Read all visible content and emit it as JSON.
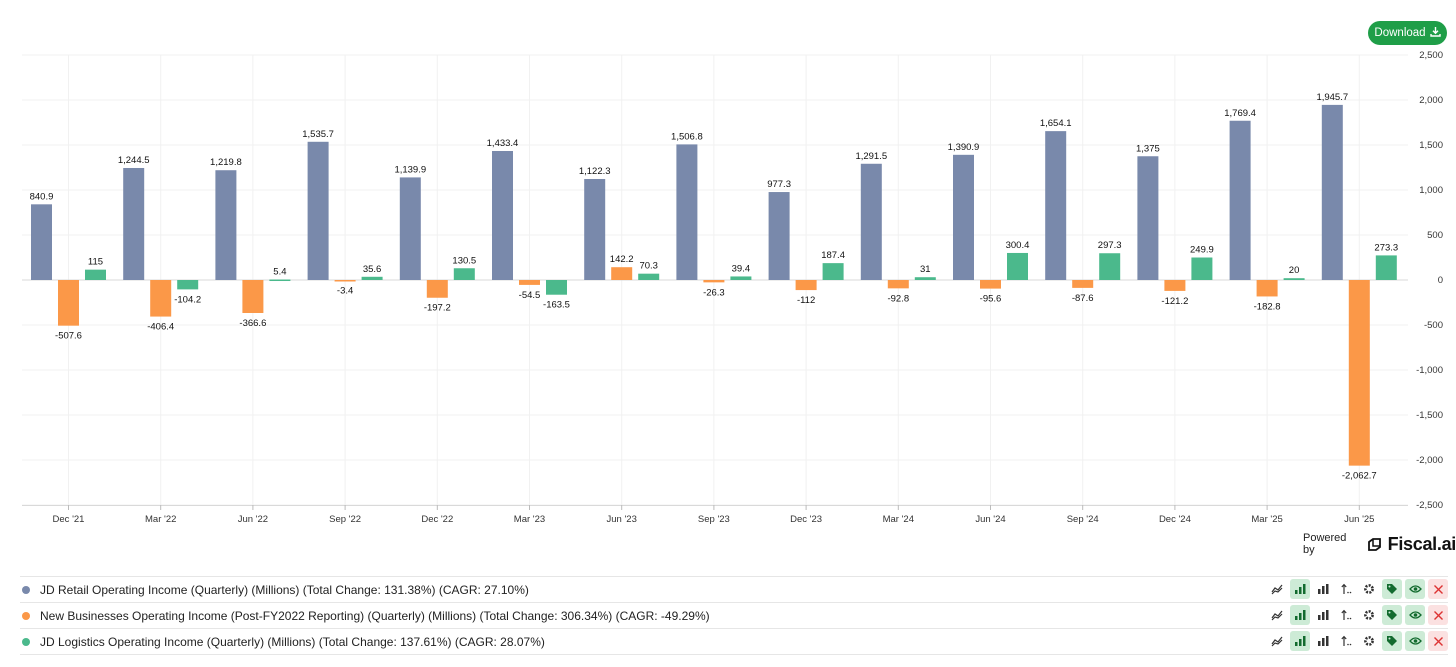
{
  "toolbar": {
    "download_label": "Download",
    "download_icon": "download-icon"
  },
  "branding": {
    "powered_by": "Powered by",
    "brand_name": "Fiscal.ai"
  },
  "chart_data": {
    "type": "bar",
    "categories": [
      "Dec '21",
      "Mar '22",
      "Jun '22",
      "Sep '22",
      "Dec '22",
      "Mar '23",
      "Jun '23",
      "Sep '23",
      "Dec '23",
      "Mar '24",
      "Jun '24",
      "Sep '24",
      "Dec '24",
      "Mar '25",
      "Jun '25"
    ],
    "series": [
      {
        "name": "JD Retail Operating Income (Quarterly) (Millions)",
        "color": "#7989ab",
        "values": [
          840.9,
          1244.5,
          1219.8,
          1535.7,
          1139.9,
          1433.4,
          1122.3,
          1506.8,
          977.3,
          1291.5,
          1390.9,
          1654.1,
          1375,
          1769.4,
          1945.7
        ],
        "labels": [
          "840.9",
          "1,244.5",
          "1,219.8",
          "1,535.7",
          "1,139.9",
          "1,433.4",
          "1,122.3",
          "1,506.8",
          "977.3",
          "1,291.5",
          "1,390.9",
          "1,654.1",
          "1,375",
          "1,769.4",
          "1,945.7"
        ]
      },
      {
        "name": "New Businesses Operating Income (Post-FY2022 Reporting) (Quarterly) (Millions)",
        "color": "#fb9848",
        "values": [
          -507.6,
          -406.4,
          -366.6,
          -3.4,
          -197.2,
          -54.5,
          142.2,
          -26.3,
          -112,
          -92.8,
          -95.6,
          -87.6,
          -121.2,
          -182.8,
          -2062.7
        ],
        "labels": [
          "-507.6",
          "-406.4",
          "-366.6",
          "-3.4",
          "-197.2",
          "-54.5",
          "142.2",
          "-26.3",
          "-112",
          "-92.8",
          "-95.6",
          "-87.6",
          "-121.2",
          "-182.8",
          "-2,062.7"
        ]
      },
      {
        "name": "JD Logistics Operating Income (Quarterly) (Millions)",
        "color": "#4bb98c",
        "values": [
          115,
          -104.2,
          5.4,
          35.6,
          130.5,
          -163.5,
          70.3,
          39.4,
          187.4,
          31,
          300.4,
          297.3,
          249.9,
          20,
          273.3
        ],
        "labels": [
          "115",
          "-104.2",
          "5.4",
          "35.6",
          "130.5",
          "-163.5",
          "70.3",
          "39.4",
          "187.4",
          "31",
          "300.4",
          "297.3",
          "249.9",
          "20",
          "273.3"
        ]
      }
    ],
    "ylim": [
      -2500,
      2500
    ],
    "yticks": [
      2500,
      2000,
      1500,
      1000,
      500,
      0,
      -500,
      -1000,
      -1500,
      -2000,
      -2500
    ],
    "ytick_labels": [
      "2,500",
      "2,000",
      "1,500",
      "1,000",
      "500",
      "0",
      "-500",
      "-1,000",
      "-1,500",
      "-2,000",
      "-2,500"
    ],
    "grid": true
  },
  "legend": {
    "items": [
      {
        "label": "JD Retail Operating Income (Quarterly) (Millions) (Total Change: 131.38%) (CAGR: 27.10%)",
        "color": "#7989ab"
      },
      {
        "label": "New Businesses Operating Income (Post-FY2022 Reporting) (Quarterly) (Millions) (Total Change: 306.34%) (CAGR: -49.29%)",
        "color": "#fb9848"
      },
      {
        "label": "JD Logistics Operating Income (Quarterly) (Millions) (Total Change: 137.61%) (CAGR: 28.07%)",
        "color": "#4bb98c"
      }
    ],
    "tools": [
      "line-chart-icon",
      "bar-chart-icon",
      "stacked-bar-icon",
      "sort-icon",
      "gear-icon",
      "tag-icon",
      "eye-icon",
      "close-icon"
    ]
  }
}
